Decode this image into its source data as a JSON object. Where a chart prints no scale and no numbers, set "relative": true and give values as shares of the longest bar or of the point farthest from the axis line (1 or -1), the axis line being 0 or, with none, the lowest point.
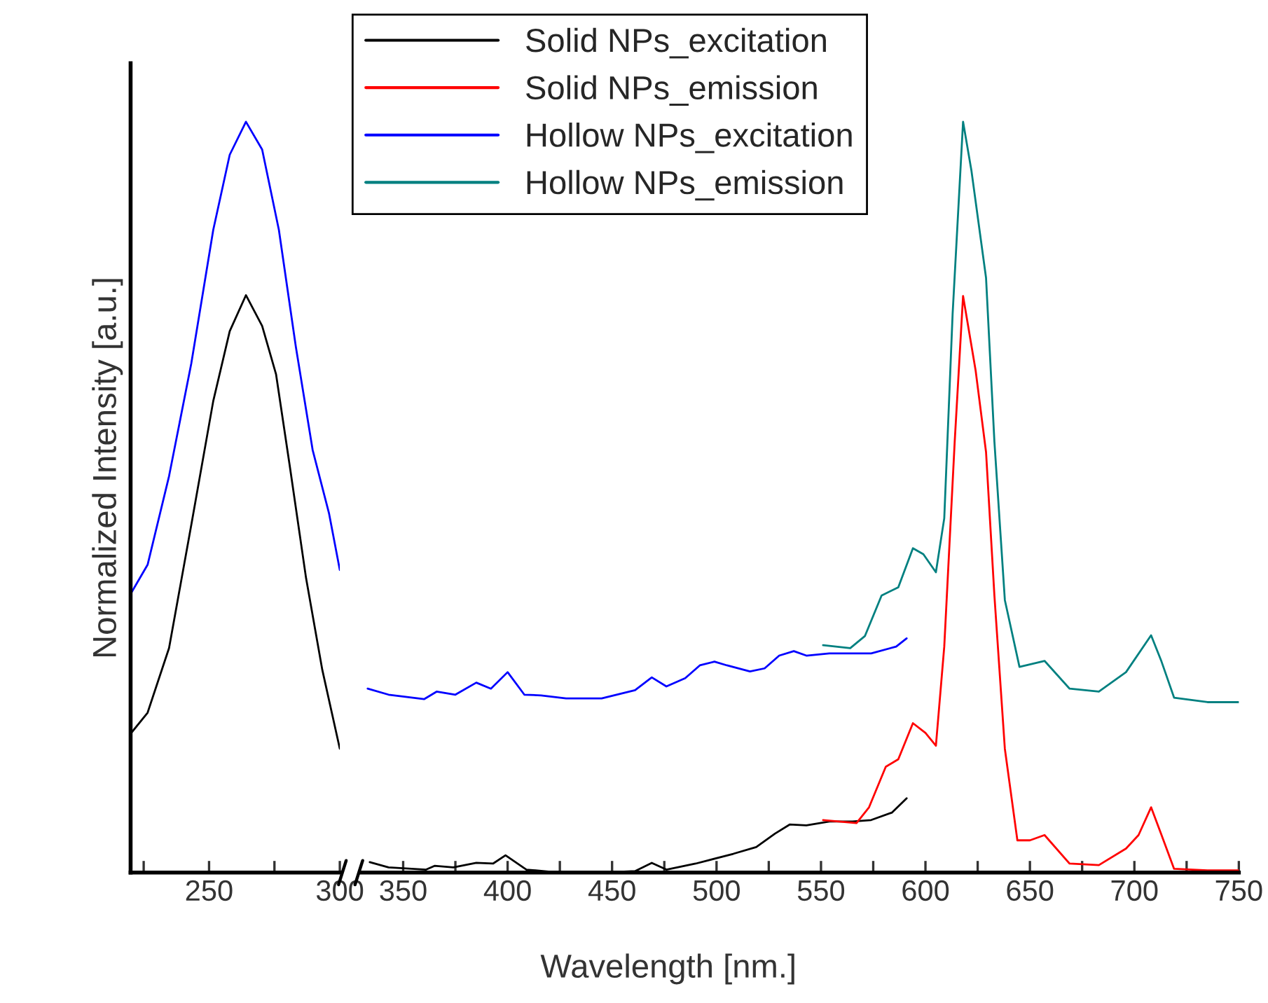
{
  "chart_data": [
    {
      "type": "line",
      "relative": true,
      "ylabel": "Normalized Intensity [a.u.]",
      "xlim": [
        220,
        300
      ],
      "xticks": [
        {
          "value": 225,
          "label": null
        },
        250,
        {
          "value": 275,
          "label": null
        },
        300
      ],
      "tick_labels": "x",
      "legend": false,
      "grid": false,
      "marker": "none",
      "line_style": "solid",
      "series": [
        {
          "color": "#000000",
          "x": [
            220,
            226.5,
            234.7,
            243.2,
            251.6,
            257.9,
            264.1,
            270.3,
            275.6,
            280.8,
            287.1,
            293.3,
            300
          ],
          "values": [
            0.185,
            0.213,
            0.299,
            0.463,
            0.628,
            0.721,
            0.769,
            0.728,
            0.664,
            0.543,
            0.392,
            0.27,
            0.165
          ]
        },
        {
          "color": "#0000ff",
          "x": [
            220,
            226.5,
            234.7,
            243.2,
            251.6,
            257.9,
            264.1,
            270.3,
            276.7,
            283.2,
            289.6,
            295.9,
            300
          ],
          "values": [
            0.371,
            0.41,
            0.528,
            0.678,
            0.856,
            0.956,
            1.0,
            0.963,
            0.856,
            0.7,
            0.563,
            0.478,
            0.403
          ]
        }
      ]
    },
    {
      "type": "line",
      "relative": true,
      "xlabel": "Wavelength [nm.]",
      "xlim": [
        330,
        750
      ],
      "xticks": [
        350,
        {
          "value": 375,
          "label": null
        },
        400,
        {
          "value": 425,
          "label": null
        },
        450,
        {
          "value": 475,
          "label": null
        },
        500,
        {
          "value": 525,
          "label": null
        },
        550,
        {
          "value": 575,
          "label": null
        },
        600,
        {
          "value": 625,
          "label": null
        },
        650,
        {
          "value": 675,
          "label": null
        },
        700,
        {
          "value": 725,
          "label": null
        },
        750
      ],
      "tick_labels": "x",
      "legend": "top left",
      "grid": false,
      "marker": "none",
      "line_style": "solid",
      "series": [
        {
          "name": "Solid NPs_excitation",
          "color": "#000000",
          "x": [
            334,
            343,
            361,
            365,
            374,
            385,
            393,
            399,
            409,
            425,
            445,
            461,
            469,
            476,
            490,
            508,
            519,
            528,
            535,
            543,
            554,
            565,
            574,
            584,
            591
          ],
          "values": [
            0.014,
            0.007,
            0.004,
            0.009,
            0.007,
            0.013,
            0.012,
            0.023,
            0.004,
            0.0,
            0.0,
            0.002,
            0.013,
            0.004,
            0.012,
            0.025,
            0.034,
            0.052,
            0.064,
            0.063,
            0.068,
            0.068,
            0.07,
            0.08,
            0.099
          ]
        },
        {
          "name": "Solid NPs_emission",
          "color": "#ff0000",
          "x": [
            551,
            567,
            573,
            581,
            587,
            594,
            600,
            605,
            609,
            614,
            618,
            624,
            629,
            633,
            638,
            644,
            650,
            657,
            669,
            683,
            696,
            702,
            708,
            713,
            719,
            735,
            750
          ],
          "values": [
            0.07,
            0.066,
            0.087,
            0.141,
            0.151,
            0.199,
            0.186,
            0.169,
            0.301,
            0.574,
            0.768,
            0.669,
            0.56,
            0.369,
            0.165,
            0.043,
            0.043,
            0.05,
            0.012,
            0.01,
            0.032,
            0.05,
            0.087,
            0.05,
            0.005,
            0.003,
            0.003
          ]
        },
        {
          "name": "Hollow NPs_excitation",
          "color": "#0000ff",
          "x": [
            333,
            343,
            360,
            366,
            375,
            385,
            392,
            400,
            408,
            416,
            428,
            445,
            461,
            469,
            476,
            485,
            492,
            499,
            505,
            516,
            523,
            530,
            537,
            543,
            554,
            574,
            586,
            591
          ],
          "values": [
            0.245,
            0.237,
            0.231,
            0.241,
            0.237,
            0.253,
            0.245,
            0.267,
            0.237,
            0.236,
            0.232,
            0.232,
            0.243,
            0.26,
            0.248,
            0.259,
            0.276,
            0.281,
            0.276,
            0.268,
            0.272,
            0.289,
            0.295,
            0.289,
            0.292,
            0.292,
            0.301,
            0.312
          ]
        },
        {
          "name": "Hollow NPs_emission",
          "color": "#008080",
          "x": [
            551,
            564,
            571,
            579,
            587,
            594,
            599,
            605,
            609,
            613,
            618,
            622,
            629,
            633,
            638,
            645,
            657,
            669,
            683,
            696,
            708,
            713,
            719,
            735,
            750
          ],
          "values": [
            0.303,
            0.299,
            0.315,
            0.369,
            0.38,
            0.432,
            0.424,
            0.4,
            0.472,
            0.744,
            1.0,
            0.935,
            0.792,
            0.574,
            0.363,
            0.274,
            0.282,
            0.245,
            0.241,
            0.267,
            0.316,
            0.281,
            0.233,
            0.227,
            0.227
          ]
        }
      ]
    }
  ]
}
